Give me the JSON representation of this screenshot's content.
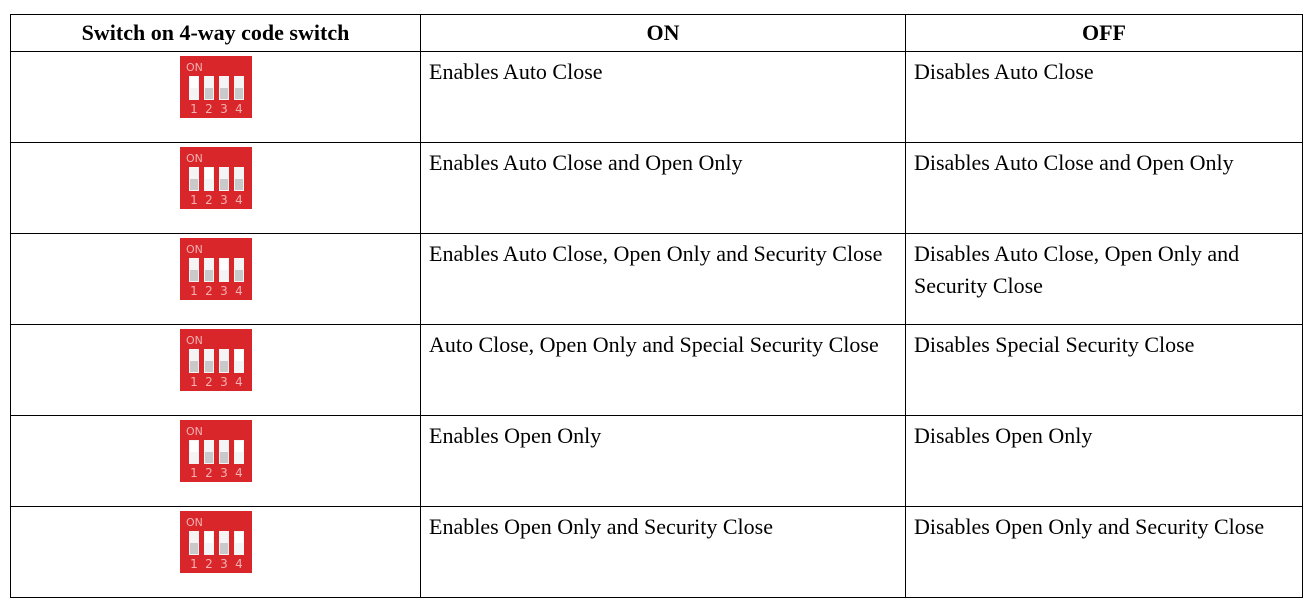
{
  "table": {
    "header": [
      "Switch on 4-way code switch",
      "ON",
      "OFF"
    ],
    "rows": [
      [
        "Enables Auto Close",
        "Disables Auto Close"
      ],
      [
        "Enables Auto Close and Open Only",
        "Disables Auto Close and Open Only"
      ],
      [
        "Enables Auto Close, Open Only and Security Close",
        "Disables Auto Close, Open Only and Security Close"
      ],
      [
        "Auto Close, Open Only and Special Security Close",
        "Disables Special Security Close"
      ],
      [
        "Enables Open Only",
        "Disables Open Only"
      ],
      [
        "Enables Open Only and Security Close",
        "Disables Open Only and Security Close"
      ]
    ]
  },
  "switch": {
    "on_label": "ON",
    "numbers": [
      "1",
      "2",
      "3",
      "4"
    ]
  }
}
